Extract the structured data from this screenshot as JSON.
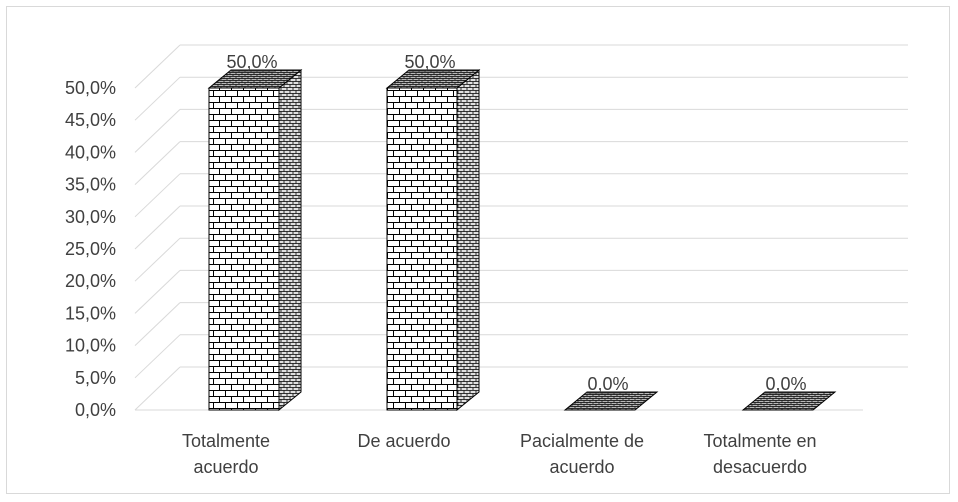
{
  "chart_data": {
    "type": "bar",
    "categories": [
      [
        "Totalmente",
        "acuerdo"
      ],
      [
        "De acuerdo"
      ],
      [
        "Pacialmente de",
        "acuerdo"
      ],
      [
        "Totalmente en",
        "desacuerdo"
      ]
    ],
    "values": [
      50.0,
      50.0,
      0.0,
      0.0
    ],
    "data_labels": [
      "50,0%",
      "50,0%",
      "0,0%",
      "0,0%"
    ],
    "y_ticks": [
      "0,0%",
      "5,0%",
      "10,0%",
      "15,0%",
      "20,0%",
      "25,0%",
      "30,0%",
      "35,0%",
      "40,0%",
      "45,0%",
      "50,0%"
    ],
    "ylim": [
      0,
      50
    ],
    "three_d": true,
    "grid": true,
    "legend": "none",
    "colors": {
      "brick_fill": "#ffffff",
      "brick_line": "#000000",
      "side_fill": "#d0d0d0",
      "grid": "#d9d9d9",
      "text": "#404040"
    }
  }
}
